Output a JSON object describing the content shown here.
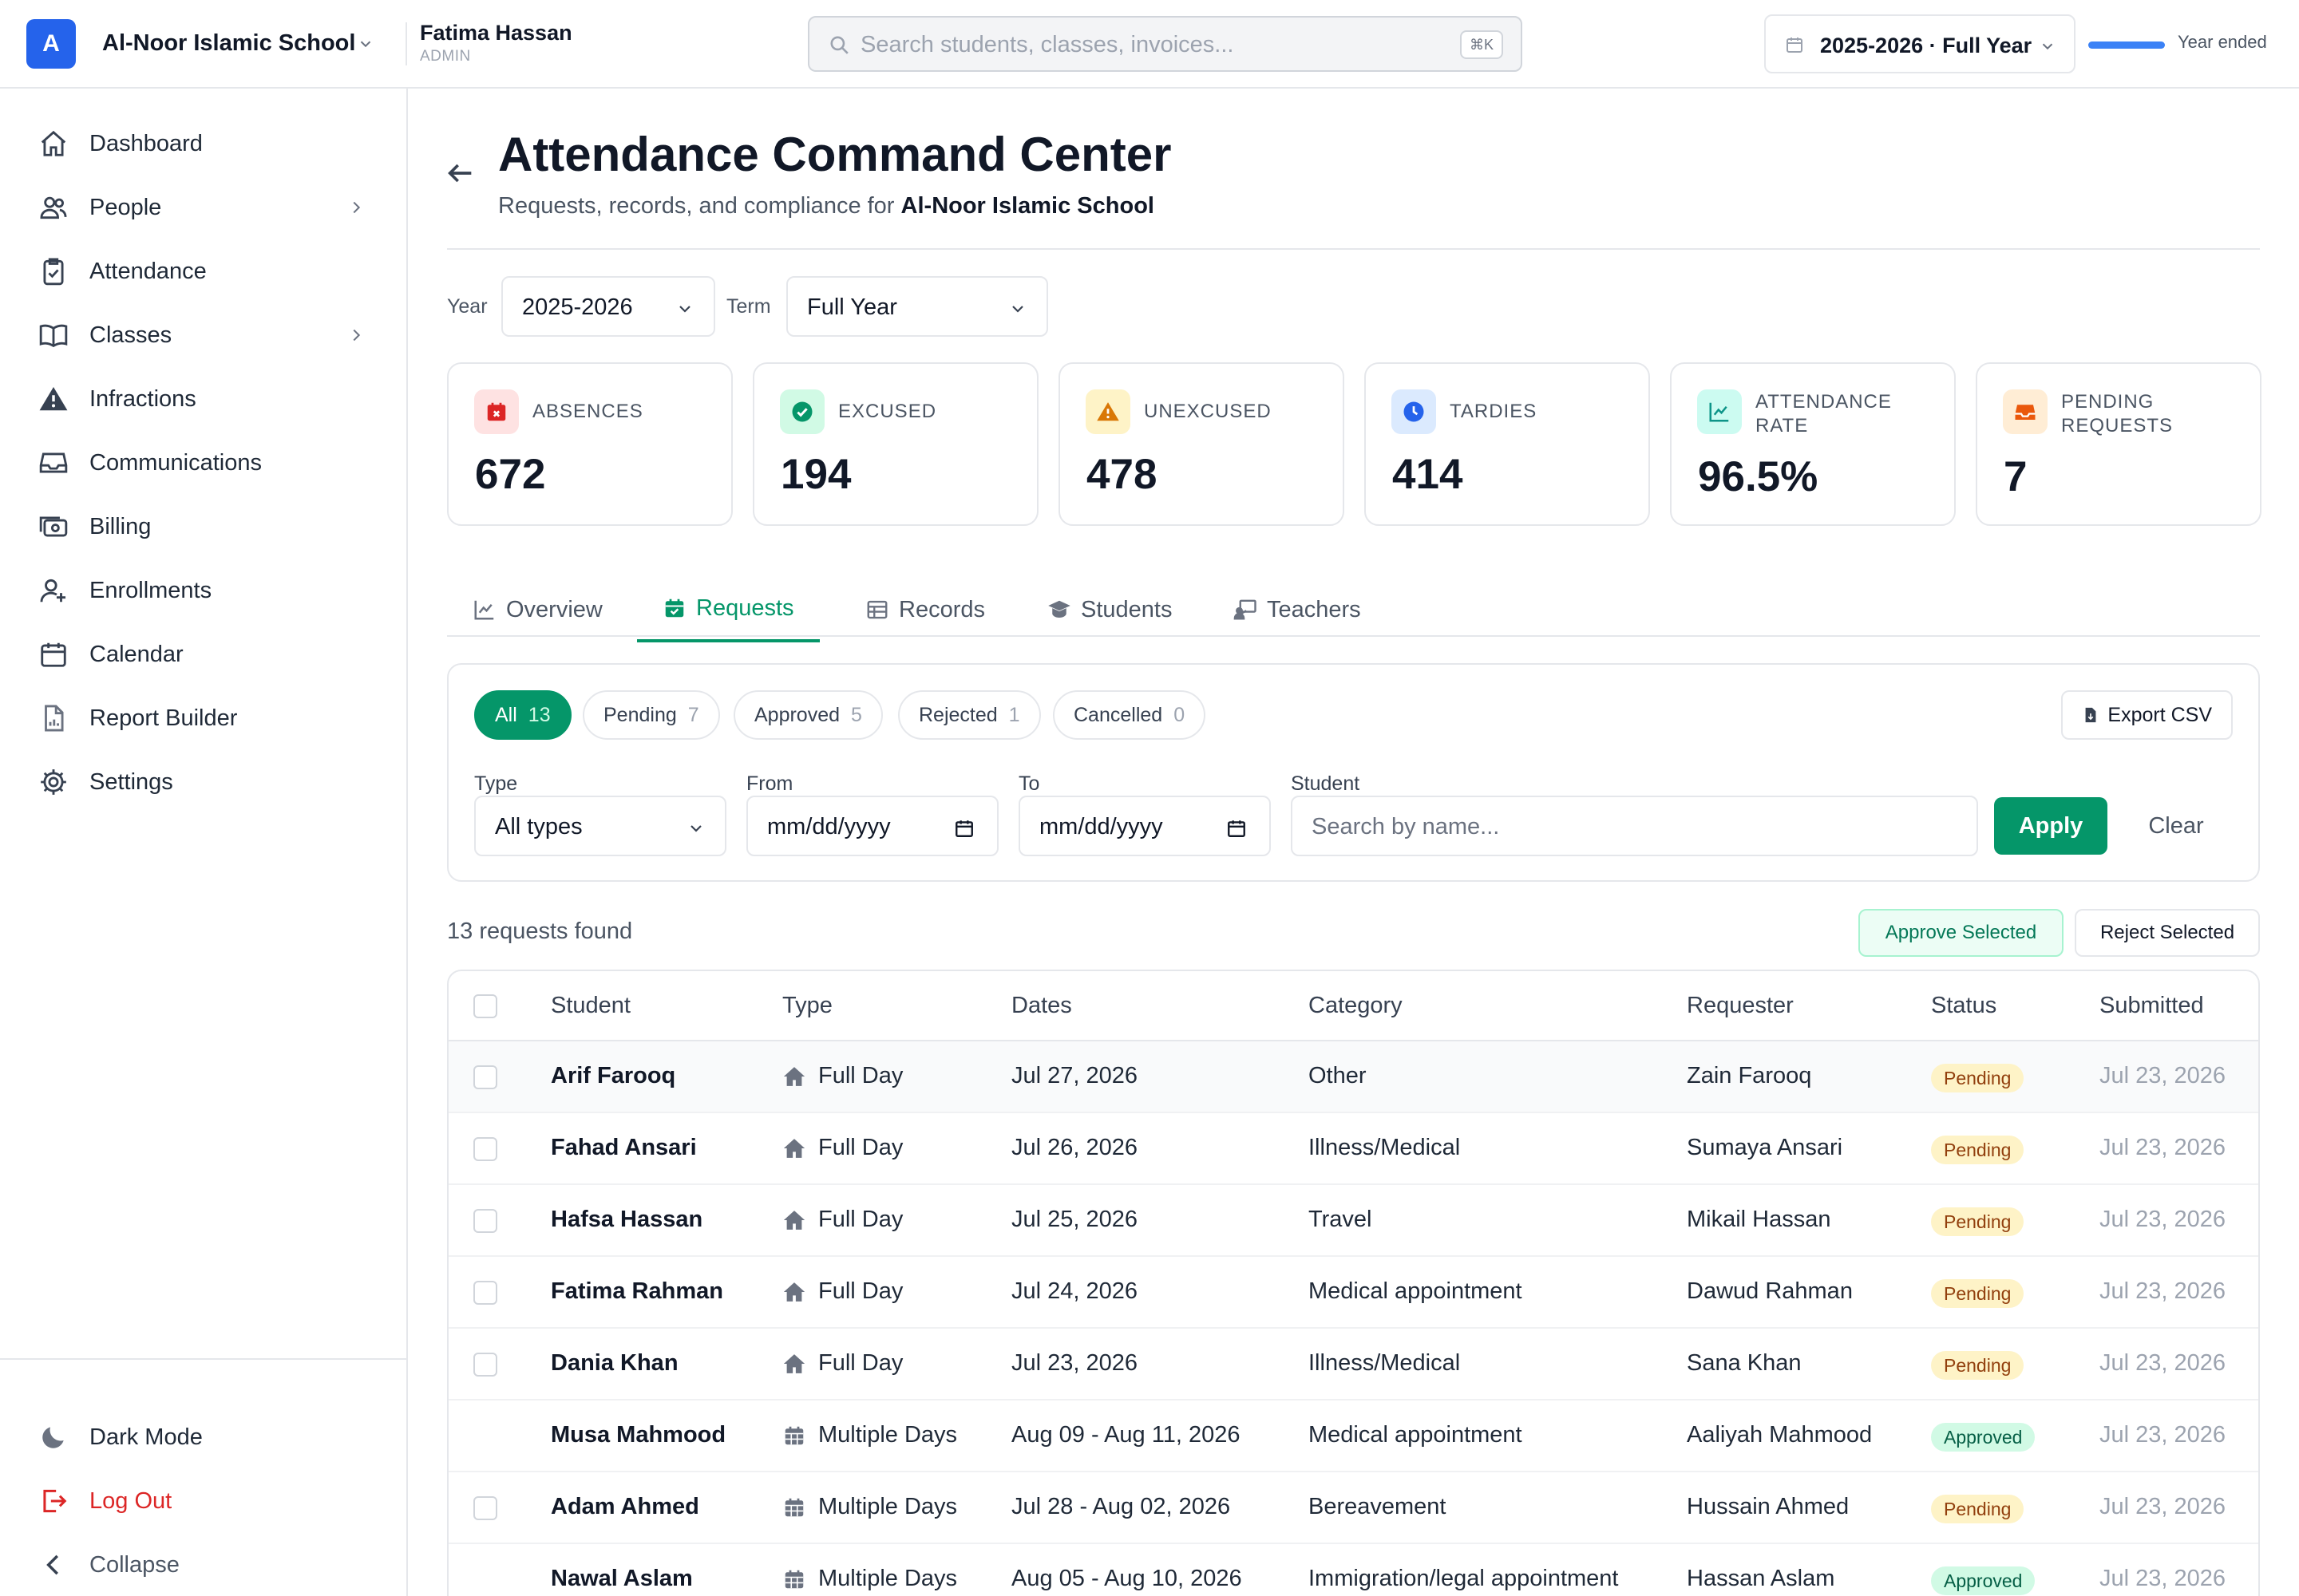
{
  "header": {
    "logo_letter": "A",
    "school_name": "Al-Noor Islamic School",
    "user_name": "Fatima Hassan",
    "user_role": "ADMIN",
    "search_placeholder": "Search students, classes, invoices...",
    "search_shortcut": "⌘K",
    "year_label": "2025-2026 · Full Year",
    "year_status": "Year ended",
    "year_progress_pct": 100
  },
  "sidebar": {
    "items": [
      {
        "label": "Dashboard",
        "icon": "home-icon"
      },
      {
        "label": "People",
        "icon": "users-icon",
        "has_submenu": true
      },
      {
        "label": "Attendance",
        "icon": "clipboard-check-icon"
      },
      {
        "label": "Classes",
        "icon": "book-icon",
        "has_submenu": true
      },
      {
        "label": "Infractions",
        "icon": "warning-icon"
      },
      {
        "label": "Communications",
        "icon": "inbox-icon"
      },
      {
        "label": "Billing",
        "icon": "cash-icon"
      },
      {
        "label": "Enrollments",
        "icon": "user-plus-icon"
      },
      {
        "label": "Calendar",
        "icon": "calendar-icon"
      },
      {
        "label": "Report Builder",
        "icon": "report-icon"
      },
      {
        "label": "Settings",
        "icon": "gear-icon"
      }
    ],
    "footer": {
      "dark_mode": "Dark Mode",
      "log_out": "Log Out",
      "collapse": "Collapse"
    }
  },
  "page": {
    "title": "Attendance Command Center",
    "subtitle_prefix": "Requests, records, and compliance for ",
    "subtitle_school": "Al-Noor Islamic School"
  },
  "filters": {
    "year_label": "Year",
    "year_value": "2025-2026",
    "term_label": "Term",
    "term_value": "Full Year"
  },
  "stats": [
    {
      "label": "ABSENCES",
      "value": "672",
      "icon": "calendar-x-icon",
      "bg": "#fee2e2",
      "fg": "#dc2626"
    },
    {
      "label": "EXCUSED",
      "value": "194",
      "icon": "check-circle-icon",
      "bg": "#d1fae5",
      "fg": "#059669"
    },
    {
      "label": "UNEXCUSED",
      "value": "478",
      "icon": "warning-icon",
      "bg": "#fef3c7",
      "fg": "#d97706"
    },
    {
      "label": "TARDIES",
      "value": "414",
      "icon": "clock-icon",
      "bg": "#dbeafe",
      "fg": "#2563eb"
    },
    {
      "label": "ATTENDANCE RATE",
      "value": "96.5%",
      "icon": "chart-line-icon",
      "bg": "#ccfbf1",
      "fg": "#0d9488"
    },
    {
      "label": "PENDING REQUESTS",
      "value": "7",
      "icon": "inbox-icon",
      "bg": "#ffedd5",
      "fg": "#ea580c"
    }
  ],
  "tabs": [
    {
      "label": "Overview",
      "icon": "chart-line-icon"
    },
    {
      "label": "Requests",
      "icon": "calendar-check-icon",
      "active": true
    },
    {
      "label": "Records",
      "icon": "table-icon"
    },
    {
      "label": "Students",
      "icon": "graduation-cap-icon"
    },
    {
      "label": "Teachers",
      "icon": "teacher-icon"
    }
  ],
  "requests": {
    "status_chips": [
      {
        "label": "All",
        "count": "13",
        "active": true
      },
      {
        "label": "Pending",
        "count": "7"
      },
      {
        "label": "Approved",
        "count": "5"
      },
      {
        "label": "Rejected",
        "count": "1"
      },
      {
        "label": "Cancelled",
        "count": "0"
      }
    ],
    "export_label": "Export CSV",
    "type_label": "Type",
    "type_value": "All types",
    "from_label": "From",
    "from_placeholder": "mm/dd/yyyy",
    "to_label": "To",
    "to_placeholder": "mm/dd/yyyy",
    "student_label": "Student",
    "student_placeholder": "Search by name...",
    "apply_label": "Apply",
    "clear_label": "Clear",
    "found_text": "13 requests found",
    "approve_selected": "Approve Selected",
    "reject_selected": "Reject Selected"
  },
  "table": {
    "columns": [
      "Student",
      "Type",
      "Dates",
      "Category",
      "Requester",
      "Status",
      "Submitted"
    ],
    "rows": [
      {
        "student": "Arif Farooq",
        "type": "Full Day",
        "type_icon": "home-icon",
        "dates": "Jul 27, 2026",
        "category": "Other",
        "requester": "Zain Farooq",
        "status": "Pending",
        "submitted": "Jul 23, 2026",
        "selectable": true
      },
      {
        "student": "Fahad Ansari",
        "type": "Full Day",
        "type_icon": "home-icon",
        "dates": "Jul 26, 2026",
        "category": "Illness/Medical",
        "requester": "Sumaya Ansari",
        "status": "Pending",
        "submitted": "Jul 23, 2026",
        "selectable": true
      },
      {
        "student": "Hafsa Hassan",
        "type": "Full Day",
        "type_icon": "home-icon",
        "dates": "Jul 25, 2026",
        "category": "Travel",
        "requester": "Mikail Hassan",
        "status": "Pending",
        "submitted": "Jul 23, 2026",
        "selectable": true
      },
      {
        "student": "Fatima Rahman",
        "type": "Full Day",
        "type_icon": "home-icon",
        "dates": "Jul 24, 2026",
        "category": "Medical appointment",
        "requester": "Dawud Rahman",
        "status": "Pending",
        "submitted": "Jul 23, 2026",
        "selectable": true
      },
      {
        "student": "Dania Khan",
        "type": "Full Day",
        "type_icon": "home-icon",
        "dates": "Jul 23, 2026",
        "category": "Illness/Medical",
        "requester": "Sana Khan",
        "status": "Pending",
        "submitted": "Jul 23, 2026",
        "selectable": true
      },
      {
        "student": "Musa Mahmood",
        "type": "Multiple Days",
        "type_icon": "calendar-grid-icon",
        "dates": "Aug 09 - Aug 11, 2026",
        "category": "Medical appointment",
        "requester": "Aaliyah Mahmood",
        "status": "Approved",
        "submitted": "Jul 23, 2026",
        "selectable": false
      },
      {
        "student": "Adam Ahmed",
        "type": "Multiple Days",
        "type_icon": "calendar-grid-icon",
        "dates": "Jul 28 - Aug 02, 2026",
        "category": "Bereavement",
        "requester": "Hussain Ahmed",
        "status": "Pending",
        "submitted": "Jul 23, 2026",
        "selectable": true
      },
      {
        "student": "Nawal Aslam",
        "type": "Multiple Days",
        "type_icon": "calendar-grid-icon",
        "dates": "Aug 05 - Aug 10, 2026",
        "category": "Immigration/legal appointment",
        "requester": "Hassan Aslam",
        "status": "Approved",
        "submitted": "Jul 23, 2026",
        "selectable": false
      }
    ]
  }
}
